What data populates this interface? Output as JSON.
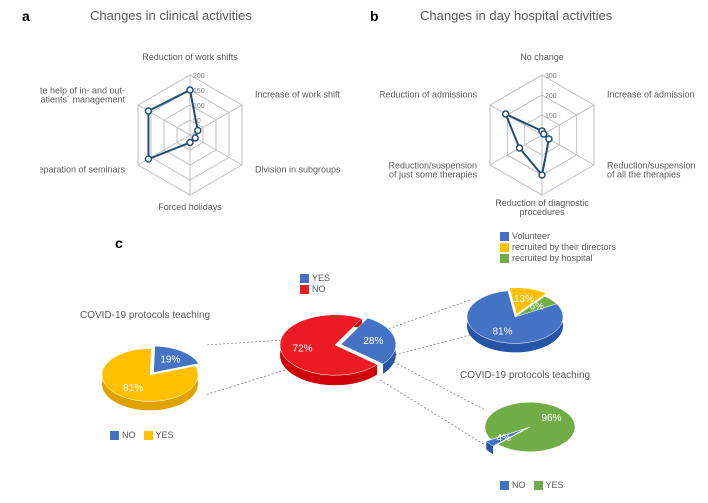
{
  "panel_a": {
    "label": "a",
    "title": "Changes  in clinical  activities",
    "axes": [
      "Reduction of work shifts",
      "Increase of work shifts",
      "Division in subgroups",
      "Forced holidays",
      "Remote preparation of seminars",
      "Remote help of in- and out-\npatients´ management"
    ],
    "ticks": [
      "0",
      "50",
      "100",
      "150",
      "200"
    ],
    "max": 200,
    "values": [
      150,
      30,
      20,
      25,
      160,
      160
    ],
    "line_color": "#1f4e79",
    "marker_fill": "#ffffff",
    "grid_color": "#bfbfbf",
    "tick_label_color": "#808080"
  },
  "panel_b": {
    "label": "b",
    "title": "Changes in day hospital activities",
    "axes": [
      "No change",
      "Increase of admission",
      "Reduction/suspension\nof all the therapies",
      "Reduction of diagnostic\nprocedures",
      "Reduction/suspension\nof just some therapies",
      "Reduction of admissions"
    ],
    "ticks": [
      "0",
      "100",
      "200",
      "300"
    ],
    "max": 300,
    "values": [
      20,
      10,
      40,
      200,
      130,
      210
    ],
    "line_color": "#1f4e79",
    "marker_fill": "#ffffff",
    "grid_color": "#bfbfbf",
    "tick_label_color": "#808080"
  },
  "panel_c": {
    "label": "c",
    "center": {
      "legend": [
        {
          "label": "YES",
          "color": "#4472c4"
        },
        {
          "label": "NO",
          "color": "#ed1c24"
        }
      ],
      "slices": [
        {
          "label": "72%",
          "value": 72,
          "color": "#ed1c24"
        },
        {
          "label": "28%",
          "value": 28,
          "color": "#4472c4"
        }
      ]
    },
    "left": {
      "title": "COVID-19 protocols teaching",
      "legend": [
        {
          "label": "NO",
          "color": "#4472c4"
        },
        {
          "label": "YES",
          "color": "#ffc000"
        }
      ],
      "slices": [
        {
          "label": "81%",
          "value": 81,
          "color": "#ffc000"
        },
        {
          "label": "19%",
          "value": 19,
          "color": "#4472c4"
        }
      ]
    },
    "right_top": {
      "legend": [
        {
          "label": "Volunteer",
          "color": "#4472c4"
        },
        {
          "label": "recruited by their directors",
          "color": "#ffc000"
        },
        {
          "label": "recruited by hospital",
          "color": "#70ad47"
        }
      ],
      "slices": [
        {
          "label": "81%",
          "value": 81,
          "color": "#4472c4"
        },
        {
          "label": "13%",
          "value": 13,
          "color": "#ffc000"
        },
        {
          "label": "6%",
          "value": 6,
          "color": "#70ad47"
        }
      ]
    },
    "right_bottom": {
      "title": "COVID-19 protocols teaching",
      "legend": [
        {
          "label": "NO",
          "color": "#4472c4"
        },
        {
          "label": "YES",
          "color": "#70ad47"
        }
      ],
      "slices": [
        {
          "label": "96%",
          "value": 96,
          "color": "#70ad47"
        },
        {
          "label": "4%",
          "value": 4,
          "color": "#4472c4"
        }
      ]
    },
    "connector_color": "#808080"
  }
}
